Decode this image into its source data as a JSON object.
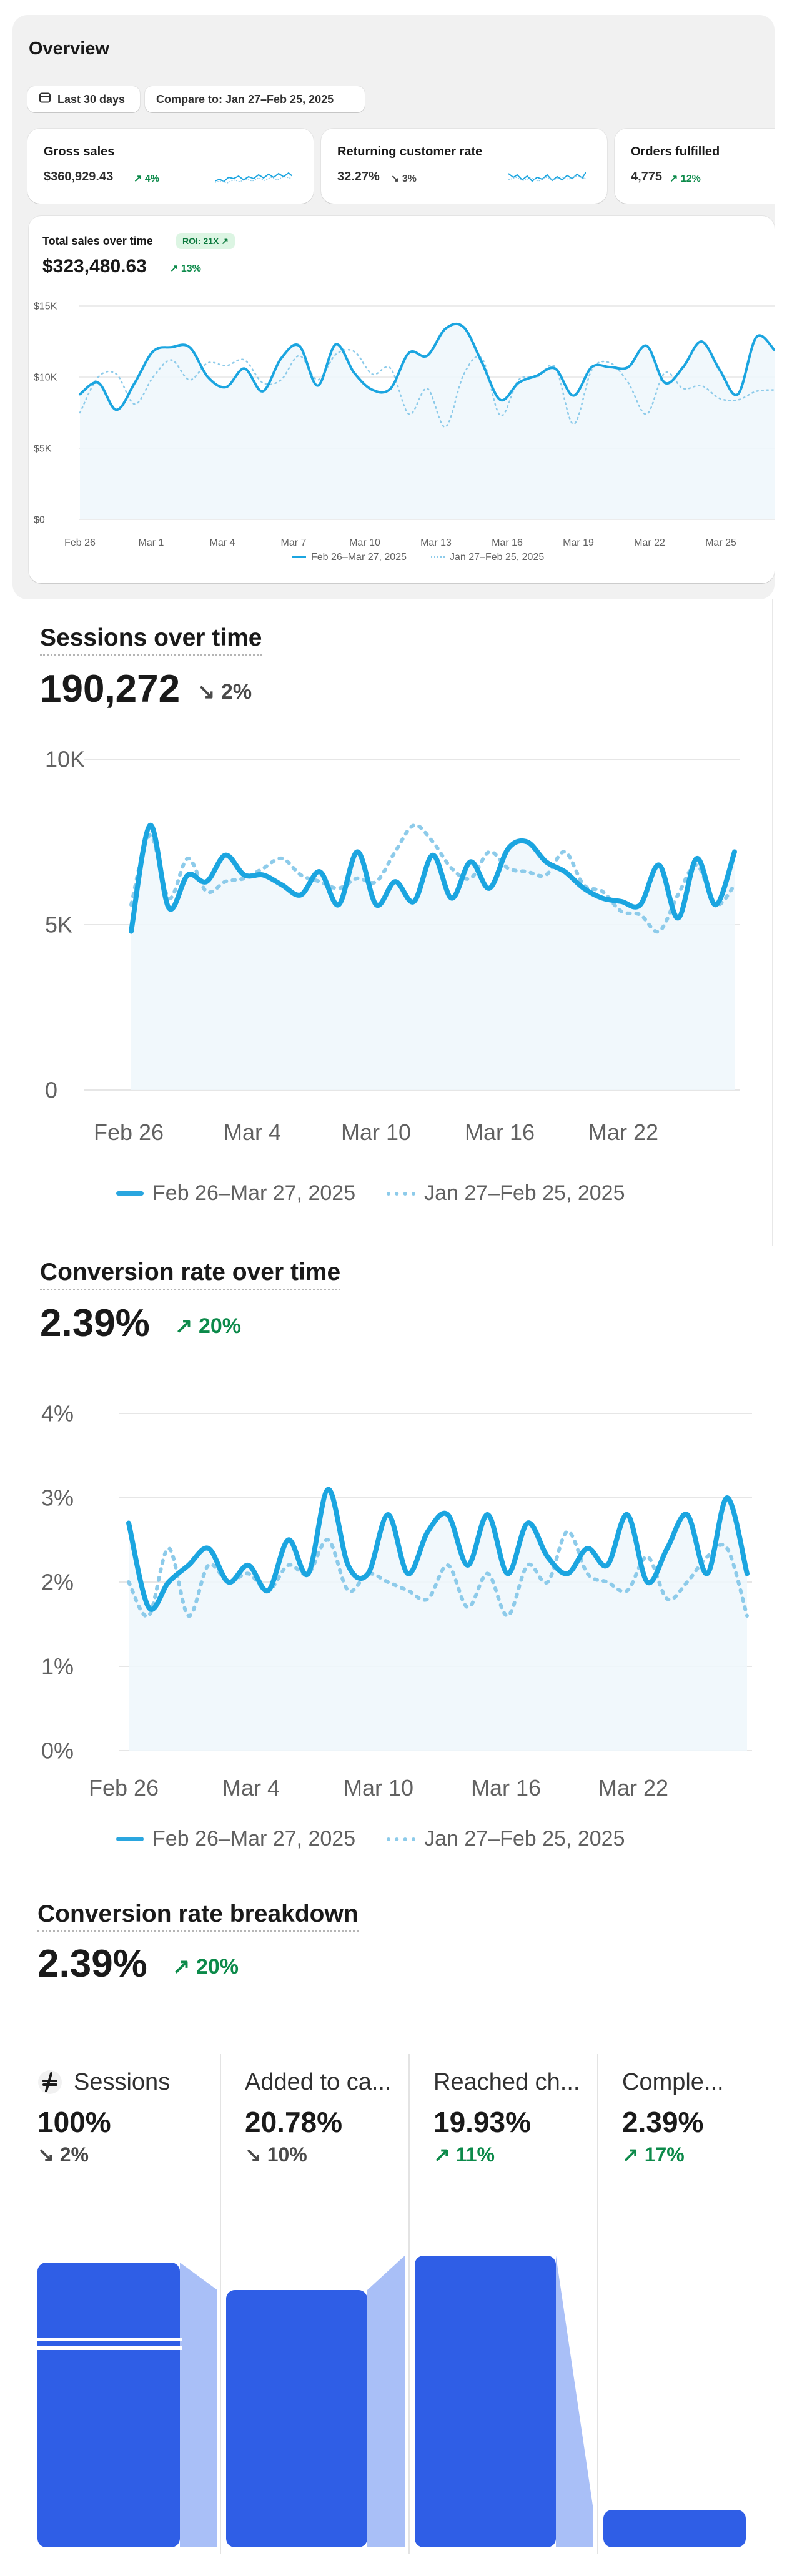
{
  "overview": {
    "title": "Overview",
    "date_range": "Last 30 days",
    "compare": "Compare to: Jan 27–Feb 25, 2025",
    "cards": [
      {
        "title": "Gross sales",
        "value": "$360,929.43",
        "change": "4%",
        "direction": "up"
      },
      {
        "title": "Returning customer rate",
        "value": "32.27%",
        "change": "3%",
        "direction": "down"
      },
      {
        "title": "Orders fulfilled",
        "value": "4,775",
        "change": "12%",
        "direction": "up"
      }
    ],
    "total_sales": {
      "title": "Total sales over time",
      "roi": "ROI: 21X",
      "value": "$323,480.63",
      "change": "13%",
      "direction": "up"
    }
  },
  "sessions": {
    "title": "Sessions over time",
    "value": "190,272",
    "change": "2%",
    "direction": "down"
  },
  "conversion": {
    "title": "Conversion rate over time",
    "value": "2.39%",
    "change": "20%",
    "direction": "up"
  },
  "breakdown": {
    "title": "Conversion rate breakdown",
    "value": "2.39%",
    "change": "20%",
    "direction": "up",
    "steps": [
      {
        "label": "Sessions",
        "pct": "100%",
        "change": "2%",
        "direction": "down"
      },
      {
        "label": "Added to ca...",
        "pct": "20.78%",
        "change": "10%",
        "direction": "down"
      },
      {
        "label": "Reached ch...",
        "pct": "19.93%",
        "change": "11%",
        "direction": "up"
      },
      {
        "label": "Comple...",
        "pct": "2.39%",
        "change": "17%",
        "direction": "up"
      }
    ]
  },
  "legend": {
    "current": "Feb 26–Mar 27, 2025",
    "previous": "Jan 27–Feb 25, 2025"
  },
  "colors": {
    "current": "#1ba5e0",
    "previous": "#8dcbea",
    "funnel_bar": "#2f5ee6",
    "funnel_light": "#a9bff7",
    "up": "#0c8a4a"
  },
  "chart_data": [
    {
      "type": "line",
      "title": "Total sales over time",
      "ylim": [
        0,
        15000
      ],
      "y_ticks": [
        "$0",
        "$5K",
        "$10K",
        "$15K"
      ],
      "x_ticks": [
        "Feb 26",
        "Mar 1",
        "Mar 4",
        "Mar 7",
        "Mar 10",
        "Mar 13",
        "Mar 16",
        "Mar 19",
        "Mar 22",
        "Mar 25"
      ],
      "series": [
        {
          "name": "Feb 26–Mar 27, 2025",
          "values": [
            8800,
            9600,
            7700,
            9600,
            11800,
            12100,
            12100,
            10000,
            9300,
            10600,
            9000,
            11300,
            12200,
            9400,
            12300,
            10300,
            9100,
            9200,
            11700,
            11500,
            13400,
            13500,
            11000,
            8400,
            9600,
            10100,
            10600,
            8700,
            10700,
            10700,
            10700,
            12200,
            9600,
            10700,
            12500,
            10500,
            8800,
            12800,
            11900
          ]
        },
        {
          "name": "Jan 27–Feb 25, 2025",
          "values": [
            7500,
            10000,
            10200,
            8100,
            10000,
            11200,
            9800,
            11000,
            10800,
            11200,
            9600,
            9800,
            11500,
            9800,
            11600,
            11800,
            10200,
            10600,
            7400,
            9200,
            6500,
            10200,
            11300,
            7300,
            9800,
            10000,
            10700,
            6700,
            10500,
            11000,
            9600,
            7400,
            10300,
            9200,
            9400,
            8500,
            8400,
            9000,
            9100
          ]
        }
      ]
    },
    {
      "type": "line",
      "title": "Sessions over time",
      "ylim": [
        0,
        10000
      ],
      "y_ticks": [
        "0",
        "5K",
        "10K"
      ],
      "x_ticks": [
        "Feb 26",
        "Mar 4",
        "Mar 10",
        "Mar 16",
        "Mar 22"
      ],
      "series": [
        {
          "name": "Feb 26–Mar 27, 2025",
          "values": [
            4800,
            8000,
            5500,
            6500,
            6300,
            7100,
            6500,
            6500,
            6200,
            5900,
            6600,
            5600,
            7200,
            5600,
            6300,
            5700,
            7100,
            5800,
            6900,
            6100,
            7300,
            7500,
            6900,
            6600,
            6100,
            5800,
            5700,
            5600,
            6800,
            5200,
            7000,
            5600,
            7200
          ]
        },
        {
          "name": "Jan 27–Feb 25, 2025",
          "values": [
            5600,
            7700,
            5800,
            7000,
            6000,
            6300,
            6400,
            6700,
            7000,
            6500,
            6300,
            6100,
            6400,
            6300,
            7200,
            8000,
            7500,
            6700,
            6400,
            7200,
            6700,
            6600,
            6500,
            7200,
            6200,
            6000,
            5400,
            5300,
            4800,
            5900,
            6800,
            5600,
            6200
          ]
        }
      ]
    },
    {
      "type": "line",
      "title": "Conversion rate over time",
      "ylim": [
        0,
        4
      ],
      "y_ticks": [
        "0%",
        "1%",
        "2%",
        "3%",
        "4%"
      ],
      "x_ticks": [
        "Feb 26",
        "Mar 4",
        "Mar 10",
        "Mar 16",
        "Mar 22"
      ],
      "series": [
        {
          "name": "Feb 26–Mar 27, 2025",
          "values": [
            2.7,
            1.7,
            2.0,
            2.2,
            2.4,
            2.0,
            2.2,
            1.9,
            2.5,
            2.1,
            3.1,
            2.2,
            2.1,
            2.8,
            2.1,
            2.6,
            2.8,
            2.2,
            2.8,
            2.1,
            2.7,
            2.3,
            2.1,
            2.4,
            2.2,
            2.8,
            2.0,
            2.4,
            2.8,
            2.1,
            3.0,
            2.1
          ]
        },
        {
          "name": "Jan 27–Feb 25, 2025",
          "values": [
            2.0,
            1.6,
            2.4,
            1.6,
            2.2,
            2.0,
            2.1,
            1.9,
            2.2,
            2.1,
            2.5,
            1.9,
            2.1,
            2.0,
            1.9,
            1.8,
            2.2,
            1.7,
            2.1,
            1.6,
            2.2,
            2.0,
            2.6,
            2.1,
            2.0,
            1.9,
            2.3,
            1.8,
            2.0,
            2.3,
            2.4,
            1.6
          ]
        }
      ]
    },
    {
      "type": "bar",
      "title": "Conversion rate breakdown",
      "categories": [
        "Sessions",
        "Added to cart",
        "Reached checkout",
        "Completed"
      ],
      "values": [
        100,
        20.78,
        19.93,
        2.39
      ]
    }
  ]
}
